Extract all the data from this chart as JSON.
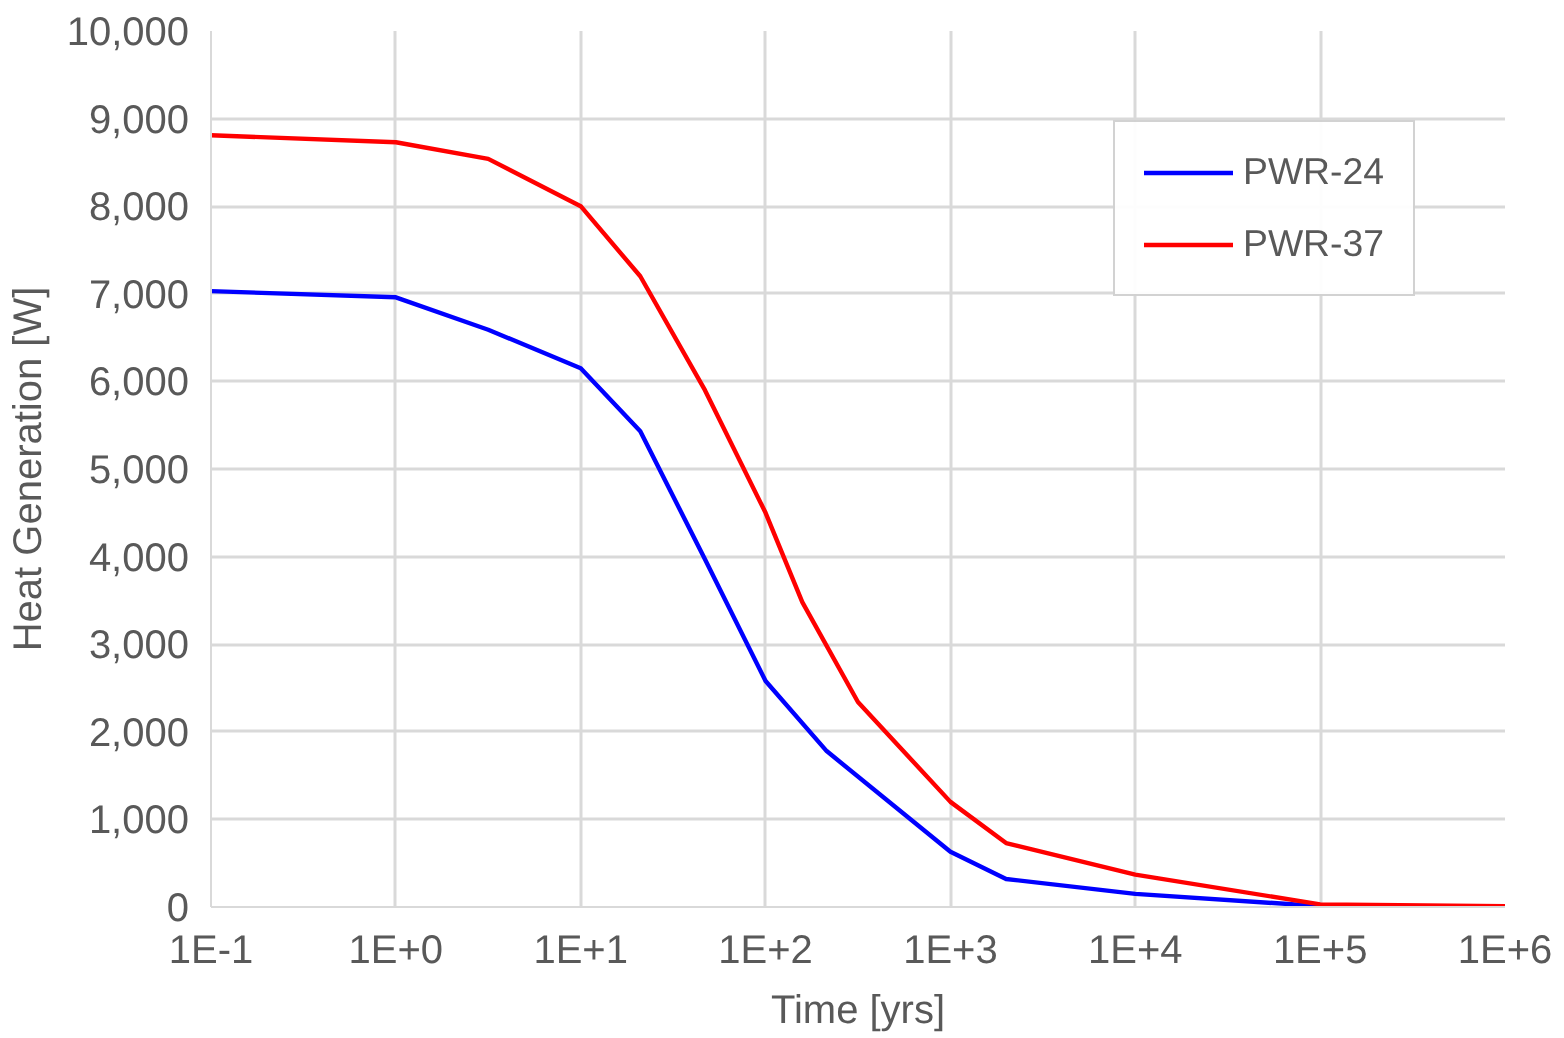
{
  "chart_data": {
    "type": "line",
    "xlabel": "Time [yrs]",
    "ylabel": "Heat Generation [W]",
    "log": "x",
    "grid": true,
    "legend": "top right",
    "marker": "none",
    "line_style": "solid",
    "xlim": [
      0.1,
      1000000
    ],
    "xticks": [
      {
        "value": 0.1,
        "label": "1E-1"
      },
      {
        "value": 1,
        "label": "1E+0"
      },
      {
        "value": 10,
        "label": "1E+1"
      },
      {
        "value": 100,
        "label": "1E+2"
      },
      {
        "value": 1000,
        "label": "1E+3"
      },
      {
        "value": 10000,
        "label": "1E+4"
      },
      {
        "value": 100000,
        "label": "1E+5"
      },
      {
        "value": 1000000,
        "label": "1E+6"
      }
    ],
    "ylim": [
      0,
      10000
    ],
    "yticks": [
      {
        "value": 0,
        "label": "0"
      },
      {
        "value": 1000,
        "label": "1,000"
      },
      {
        "value": 2000,
        "label": "2,000"
      },
      {
        "value": 3000,
        "label": "3,000"
      },
      {
        "value": 4000,
        "label": "4,000"
      },
      {
        "value": 5000,
        "label": "5,000"
      },
      {
        "value": 6000,
        "label": "6,000"
      },
      {
        "value": 7000,
        "label": "7,000"
      },
      {
        "value": 8000,
        "label": "8,000"
      },
      {
        "value": 9000,
        "label": "9,000"
      },
      {
        "value": 10000,
        "label": "10,000"
      }
    ],
    "series": [
      {
        "name": "PWR-24",
        "color": "#0000ff",
        "x": [
          0.1,
          1,
          3.16,
          10,
          21,
          47,
          100,
          214,
          1000,
          2000,
          10000,
          100000,
          1000000
        ],
        "values": [
          7030,
          6960,
          6590,
          6150,
          5430,
          3970,
          2580,
          1780,
          630,
          320,
          150,
          10,
          5
        ]
      },
      {
        "name": "PWR-37",
        "color": "#ff0000",
        "x": [
          0.1,
          1,
          3.16,
          10,
          21,
          47,
          100,
          158,
          316,
          1000,
          2000,
          10000,
          100000,
          1000000
        ],
        "values": [
          8810,
          8730,
          8540,
          8000,
          7200,
          5900,
          4500,
          3480,
          2340,
          1200,
          730,
          370,
          30,
          10
        ]
      }
    ]
  }
}
